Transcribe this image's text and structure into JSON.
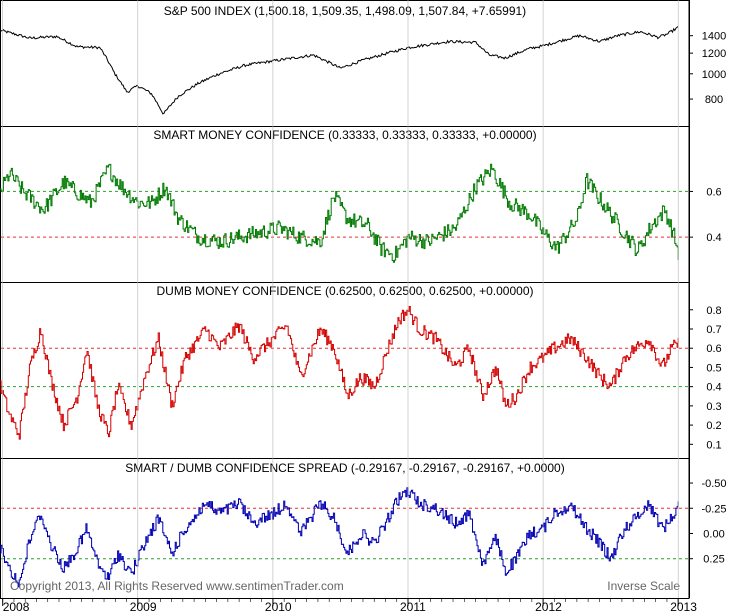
{
  "colors": {
    "price": "#000000",
    "smart": "#007a00",
    "dumb": "#d40000",
    "spread": "#0000b4",
    "ref_green": "#2e9e2e",
    "ref_red": "#e03030",
    "frame": "#000000",
    "grid": "#b4b4b4"
  },
  "chart_data": [
    {
      "type": "line",
      "title": "S&P 500 INDEX (1,500.18, 1,509.35, 1,498.09, 1,507.84, +7.65991)",
      "yticks": [
        800,
        1000,
        1200,
        1400
      ],
      "ylim": [
        665,
        1580
      ],
      "scale": "log",
      "series": [
        {
          "x_anchor": [
            2007.98,
            2008.2,
            2008.4,
            2008.55,
            2008.72,
            2008.83,
            2008.92,
            2009.0,
            2009.1,
            2009.19,
            2009.3,
            2009.45,
            2009.6,
            2009.8,
            2010.0,
            2010.3,
            2010.5,
            2010.65,
            2010.85,
            2011.0,
            2011.3,
            2011.5,
            2011.6,
            2011.72,
            2011.9,
            2012.0,
            2012.27,
            2012.42,
            2012.55,
            2012.72,
            2012.85,
            2012.92,
            2013.0
          ],
          "y_anchor": [
            1470,
            1370,
            1390,
            1270,
            1260,
            1000,
            850,
            900,
            840,
            700,
            820,
            920,
            1000,
            1080,
            1120,
            1180,
            1050,
            1120,
            1200,
            1260,
            1330,
            1320,
            1180,
            1150,
            1250,
            1280,
            1400,
            1330,
            1400,
            1450,
            1380,
            1420,
            1508
          ]
        }
      ]
    },
    {
      "type": "line",
      "title": "SMART MONEY CONFIDENCE (0.33333, 0.33333, 0.33333, +0.00000)",
      "yticks": [
        0.4,
        0.6
      ],
      "ylim": [
        0.23,
        0.79
      ],
      "reference_lines": [
        0.6,
        0.4
      ],
      "series": [
        {
          "x_anchor": [
            2007.98,
            2008.05,
            2008.15,
            2008.3,
            2008.45,
            2008.65,
            2008.78,
            2008.88,
            2009.0,
            2009.1,
            2009.2,
            2009.3,
            2009.45,
            2009.6,
            2009.75,
            2009.9,
            2010.05,
            2010.2,
            2010.35,
            2010.45,
            2010.55,
            2010.7,
            2010.8,
            2010.9,
            2011.0,
            2011.15,
            2011.35,
            2011.5,
            2011.62,
            2011.75,
            2011.9,
            2012.0,
            2012.1,
            2012.25,
            2012.32,
            2012.4,
            2012.5,
            2012.6,
            2012.7,
            2012.8,
            2012.9,
            2012.97,
            2013.0
          ],
          "y_anchor": [
            0.6,
            0.68,
            0.6,
            0.52,
            0.64,
            0.55,
            0.7,
            0.62,
            0.55,
            0.55,
            0.62,
            0.48,
            0.4,
            0.38,
            0.4,
            0.42,
            0.44,
            0.4,
            0.38,
            0.58,
            0.48,
            0.45,
            0.35,
            0.32,
            0.4,
            0.38,
            0.44,
            0.62,
            0.7,
            0.55,
            0.5,
            0.42,
            0.35,
            0.48,
            0.65,
            0.58,
            0.5,
            0.42,
            0.34,
            0.45,
            0.52,
            0.4,
            0.33
          ]
        }
      ]
    },
    {
      "type": "line",
      "title": "DUMB MONEY CONFIDENCE (0.62500, 0.62500, 0.62500, +0.00000)",
      "yticks": [
        0.1,
        0.2,
        0.3,
        0.4,
        0.5,
        0.6,
        0.7,
        0.8
      ],
      "ylim": [
        0.06,
        0.83
      ],
      "reference_lines": [
        0.6,
        0.4
      ],
      "series": [
        {
          "x_anchor": [
            2007.98,
            2008.05,
            2008.12,
            2008.2,
            2008.28,
            2008.35,
            2008.45,
            2008.55,
            2008.62,
            2008.7,
            2008.78,
            2008.85,
            2008.95,
            2009.05,
            2009.15,
            2009.25,
            2009.35,
            2009.5,
            2009.6,
            2009.75,
            2009.85,
            2010.0,
            2010.1,
            2010.2,
            2010.35,
            2010.45,
            2010.55,
            2010.65,
            2010.75,
            2010.85,
            2010.93,
            2011.0,
            2011.08,
            2011.2,
            2011.35,
            2011.45,
            2011.55,
            2011.65,
            2011.72,
            2011.8,
            2011.9,
            2012.0,
            2012.08,
            2012.2,
            2012.32,
            2012.42,
            2012.5,
            2012.6,
            2012.68,
            2012.78,
            2012.88,
            2012.95,
            2013.0
          ],
          "y_anchor": [
            0.4,
            0.25,
            0.15,
            0.5,
            0.7,
            0.45,
            0.2,
            0.35,
            0.6,
            0.3,
            0.15,
            0.4,
            0.2,
            0.45,
            0.65,
            0.3,
            0.55,
            0.7,
            0.6,
            0.72,
            0.55,
            0.65,
            0.72,
            0.45,
            0.7,
            0.6,
            0.35,
            0.45,
            0.4,
            0.6,
            0.75,
            0.8,
            0.7,
            0.65,
            0.5,
            0.6,
            0.35,
            0.5,
            0.3,
            0.35,
            0.5,
            0.55,
            0.6,
            0.65,
            0.55,
            0.45,
            0.4,
            0.55,
            0.6,
            0.65,
            0.5,
            0.6,
            0.625
          ]
        }
      ]
    },
    {
      "type": "line",
      "title": "SMART / DUMB CONFIDENCE SPREAD (-0.29167, -0.29167, -0.29167, +0.0000)",
      "yticks": [
        -0.5,
        -0.25,
        0.0,
        0.25
      ],
      "tick_labels": [
        "-0.50",
        "-0.25",
        "0.00",
        "0.25"
      ],
      "ylim": [
        -0.53,
        0.58
      ],
      "scale": "inverse",
      "annotation": "Inverse Scale",
      "reference_lines": [
        -0.25,
        0.25
      ],
      "series": [
        {
          "x_anchor": [
            2007.98,
            2008.05,
            2008.12,
            2008.2,
            2008.28,
            2008.35,
            2008.45,
            2008.55,
            2008.62,
            2008.7,
            2008.78,
            2008.85,
            2008.95,
            2009.05,
            2009.15,
            2009.25,
            2009.35,
            2009.5,
            2009.6,
            2009.75,
            2009.85,
            2010.0,
            2010.1,
            2010.2,
            2010.35,
            2010.45,
            2010.55,
            2010.65,
            2010.75,
            2010.85,
            2010.93,
            2011.0,
            2011.08,
            2011.2,
            2011.35,
            2011.45,
            2011.55,
            2011.65,
            2011.72,
            2011.8,
            2011.9,
            2012.0,
            2012.08,
            2012.2,
            2012.32,
            2012.42,
            2012.5,
            2012.6,
            2012.68,
            2012.78,
            2012.88,
            2012.95,
            2013.0
          ],
          "y_anchor": [
            0.15,
            0.35,
            0.5,
            0.05,
            -0.2,
            0.1,
            0.35,
            0.15,
            -0.05,
            0.3,
            0.45,
            0.2,
            0.4,
            0.1,
            -0.15,
            0.2,
            -0.05,
            -0.3,
            -0.2,
            -0.3,
            -0.1,
            -0.2,
            -0.3,
            0.0,
            -0.3,
            -0.15,
            0.2,
            0.0,
            0.1,
            -0.15,
            -0.35,
            -0.42,
            -0.3,
            -0.25,
            -0.1,
            -0.2,
            0.3,
            0.05,
            0.38,
            0.25,
            0.0,
            -0.05,
            -0.2,
            -0.28,
            -0.05,
            0.1,
            0.25,
            -0.05,
            -0.15,
            -0.3,
            -0.05,
            -0.15,
            -0.29
          ]
        }
      ]
    }
  ],
  "x_axis": {
    "labels": [
      "2008",
      "2009",
      "2010",
      "2011",
      "2012",
      "2013"
    ],
    "xlim": [
      2007.98,
      2013.08
    ]
  },
  "footer": {
    "copyright": "Copyright 2013, All Rights Reserved  www.sentimenTrader.com"
  }
}
